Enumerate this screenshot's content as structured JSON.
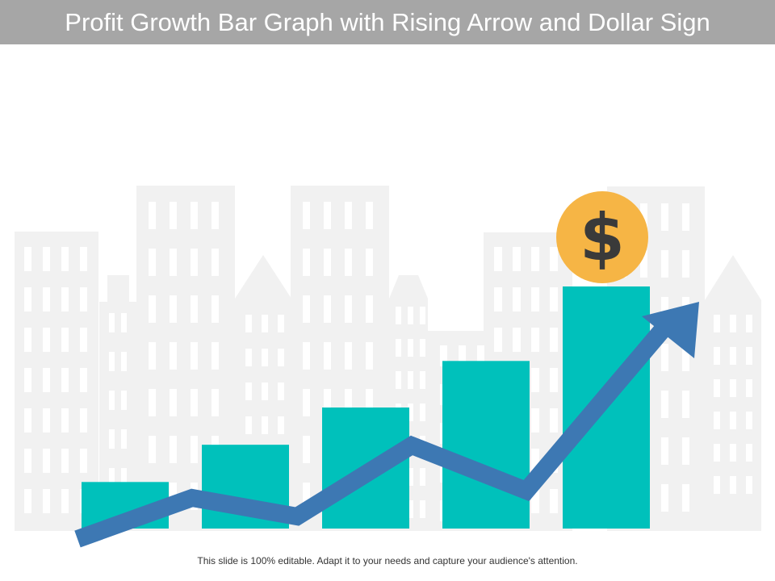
{
  "slide": {
    "title": "Profit Growth Bar Graph with Rising Arrow and Dollar Sign",
    "footer": "This slide is 100% editable. Adapt it to your needs and capture your audience's attention."
  },
  "icons": {
    "coin": "dollar-coin-icon",
    "arrow": "rising-arrow-icon",
    "background": "city-buildings"
  },
  "coin": {
    "symbol": "$"
  },
  "colors": {
    "title_bar": "#a6a6a6",
    "bars": "#00c1bb",
    "arrow": "#3d78b3",
    "coin": "#f6b545",
    "coin_symbol": "#3a3a3a",
    "buildings": "#f1f1f1",
    "windows": "#ffffff"
  },
  "chart_data": {
    "type": "bar",
    "categories": [
      "",
      "",
      "",
      "",
      ""
    ],
    "values": [
      1,
      1.8,
      2.6,
      3.6,
      5.2
    ]
  }
}
